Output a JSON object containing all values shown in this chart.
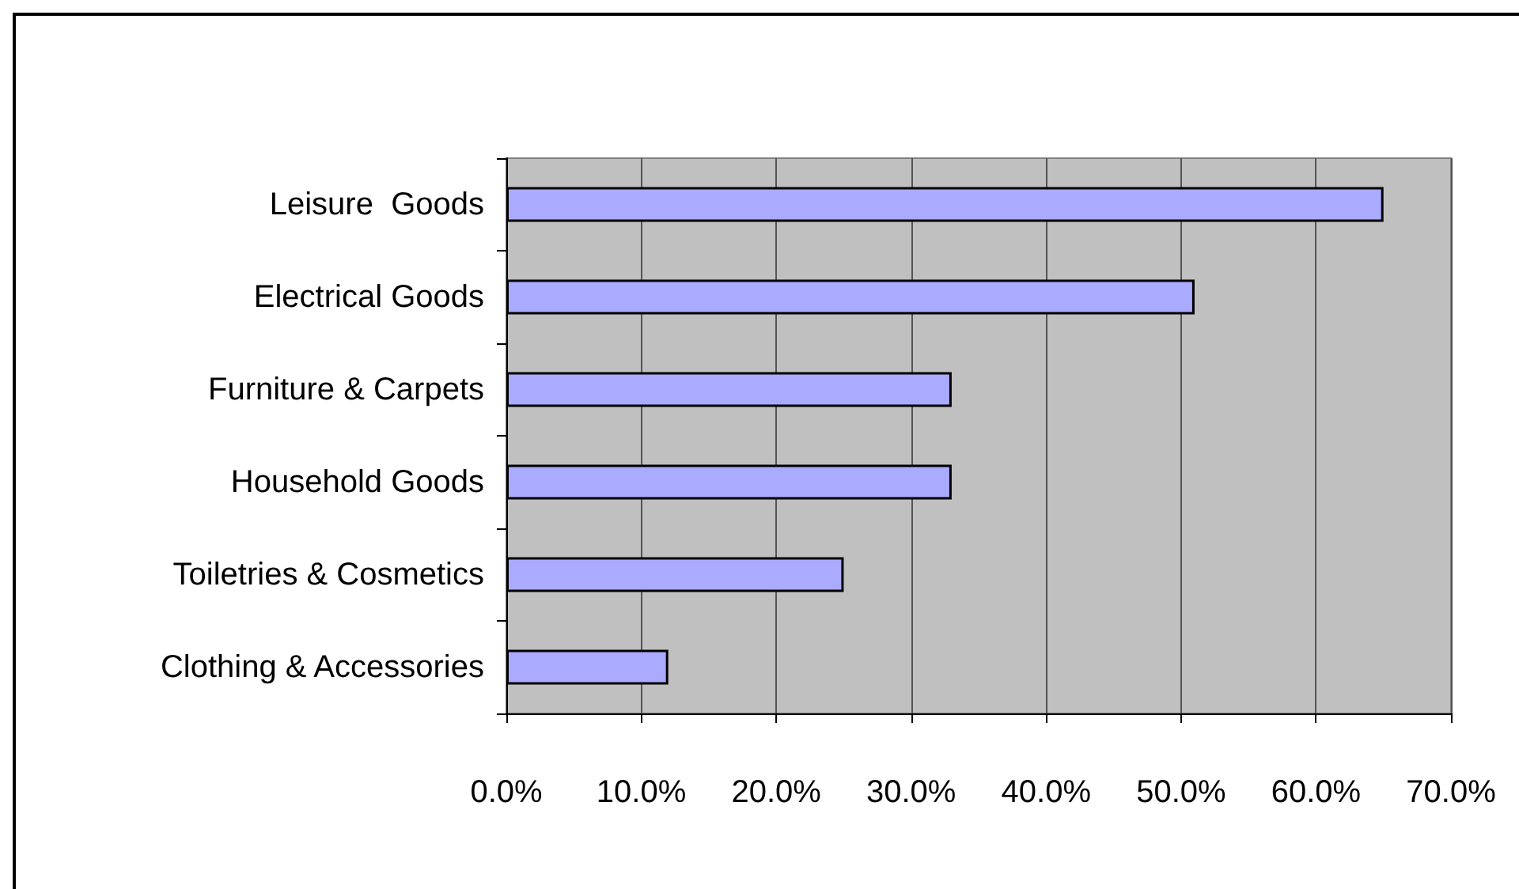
{
  "chart_data": {
    "type": "bar",
    "orientation": "horizontal",
    "categories": [
      "Leisure  Goods",
      "Electrical Goods",
      "Furniture & Carpets",
      "Household Goods",
      "Toiletries & Cosmetics",
      "Clothing & Accessories"
    ],
    "values": [
      65,
      51,
      33,
      33,
      25,
      12
    ],
    "color": "#aaaaff",
    "xlim": [
      0,
      70
    ],
    "xticks": [
      {
        "value": 0,
        "label": "0.0%"
      },
      {
        "value": 10,
        "label": "10.0%"
      },
      {
        "value": 20,
        "label": "20.0%"
      },
      {
        "value": 30,
        "label": "30.0%"
      },
      {
        "value": 40,
        "label": "40.0%"
      },
      {
        "value": 50,
        "label": "50.0%"
      },
      {
        "value": 60,
        "label": "60.0%"
      },
      {
        "value": 70,
        "label": "70.0%"
      }
    ],
    "grid": "x"
  }
}
